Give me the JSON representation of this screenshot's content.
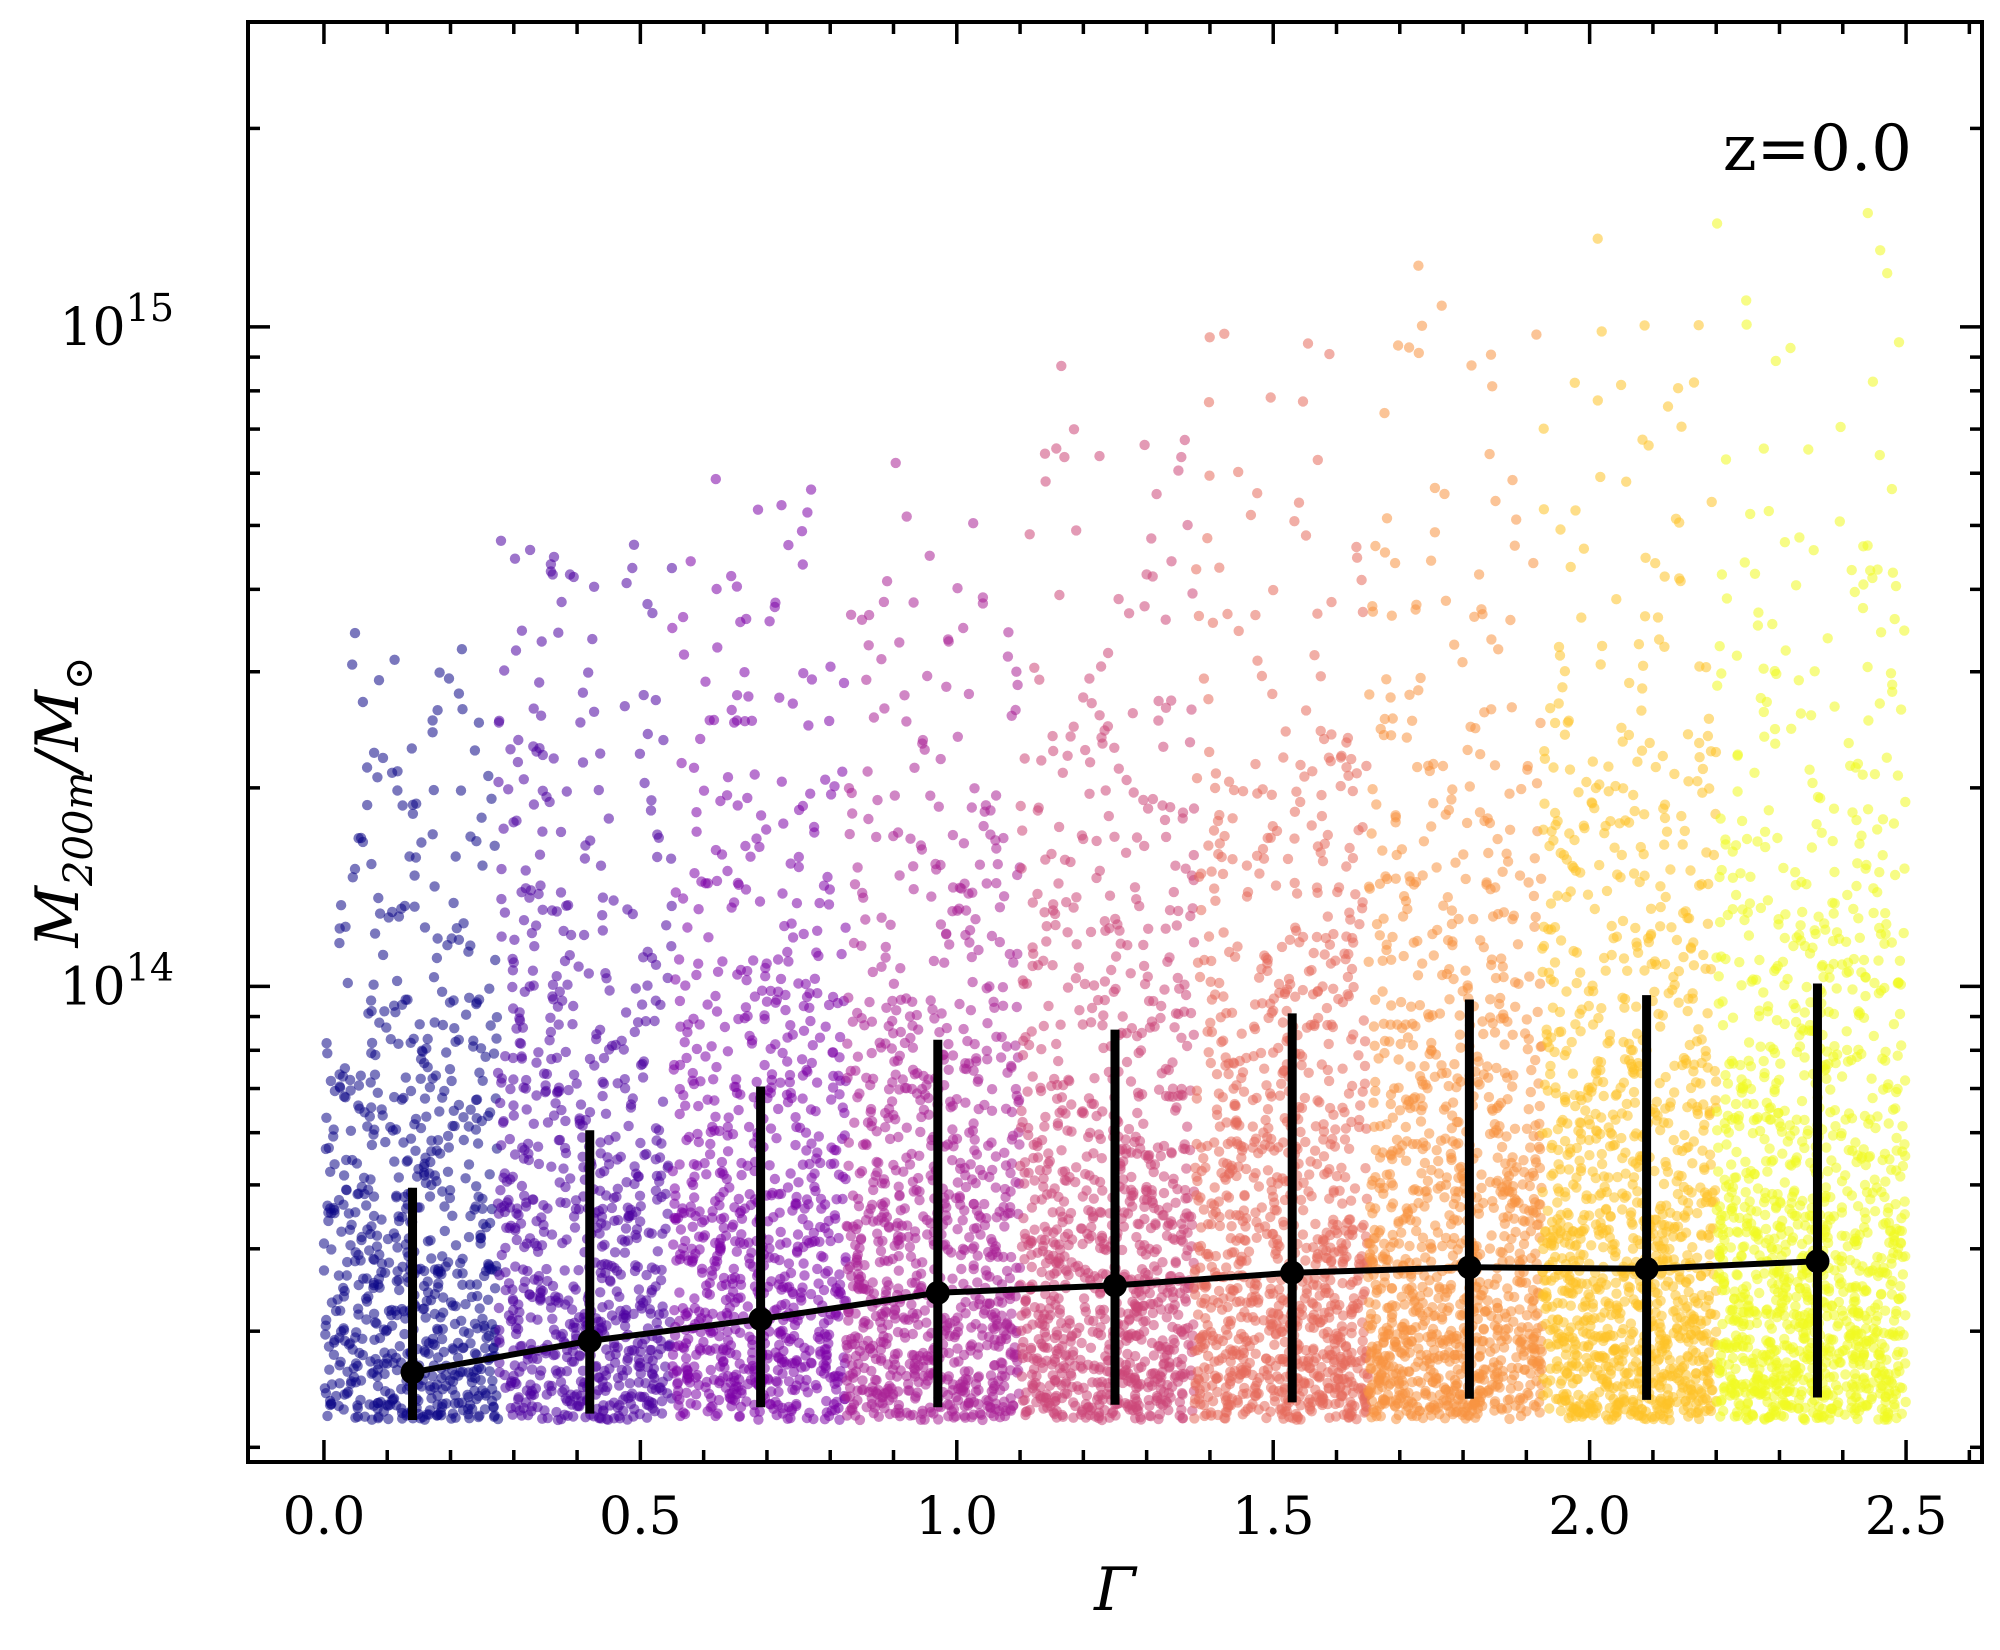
{
  "chart_data": {
    "type": "scatter",
    "annotation": "z=0.0",
    "xlabel": "Γ",
    "ylabel": {
      "base": "M",
      "sub1": "200m",
      "slash": "/M",
      "sub2": "⊙"
    },
    "x_ticks": [
      "0.0",
      "0.5",
      "1.0",
      "1.5",
      "2.0",
      "2.5"
    ],
    "x_tick_values": [
      0.0,
      0.5,
      1.0,
      1.5,
      2.0,
      2.5
    ],
    "xlim": [
      -0.12,
      2.62
    ],
    "y_scale": "log",
    "ylim": [
      19000000000000,
      2900000000000000
    ],
    "y_ticks": [
      {
        "value": 100000000000000,
        "base": "10",
        "exp": "14"
      },
      {
        "value": 1000000000000000,
        "base": "10",
        "exp": "15"
      }
    ],
    "colormap": "plasma",
    "grid": false,
    "bins": [
      {
        "x_range": [
          0.0,
          0.275
        ],
        "color": "#0d0887"
      },
      {
        "x_range": [
          0.275,
          0.55
        ],
        "color": "#4c02a1"
      },
      {
        "x_range": [
          0.55,
          0.825
        ],
        "color": "#7e03a8"
      },
      {
        "x_range": [
          0.825,
          1.1
        ],
        "color": "#a92395"
      },
      {
        "x_range": [
          1.1,
          1.375
        ],
        "color": "#cc4778"
      },
      {
        "x_range": [
          1.375,
          1.65
        ],
        "color": "#e56b5d"
      },
      {
        "x_range": [
          1.65,
          1.925
        ],
        "color": "#f89441"
      },
      {
        "x_range": [
          1.925,
          2.2
        ],
        "color": "#fdc328"
      },
      {
        "x_range": [
          2.2,
          2.5
        ],
        "color": "#f0f921"
      }
    ],
    "median_series": {
      "x": [
        0.14,
        0.42,
        0.69,
        0.97,
        1.25,
        1.53,
        1.81,
        2.09,
        2.36
      ],
      "y": [
        26000000000000,
        29000000000000,
        31300000000000,
        34300000000000,
        35200000000000,
        36800000000000,
        37500000000000,
        37300000000000,
        38300000000000
      ],
      "y_low": [
        22000000000000,
        22500000000000,
        23000000000000,
        23000000000000,
        23200000000000,
        23400000000000,
        23700000000000,
        23600000000000,
        23800000000000
      ],
      "y_high": [
        49500000000000,
        60500000000000,
        70500000000000,
        83000000000000,
        86000000000000,
        91000000000000,
        95500000000000,
        97000000000000,
        101000000000000
      ],
      "color": "#000000"
    }
  }
}
